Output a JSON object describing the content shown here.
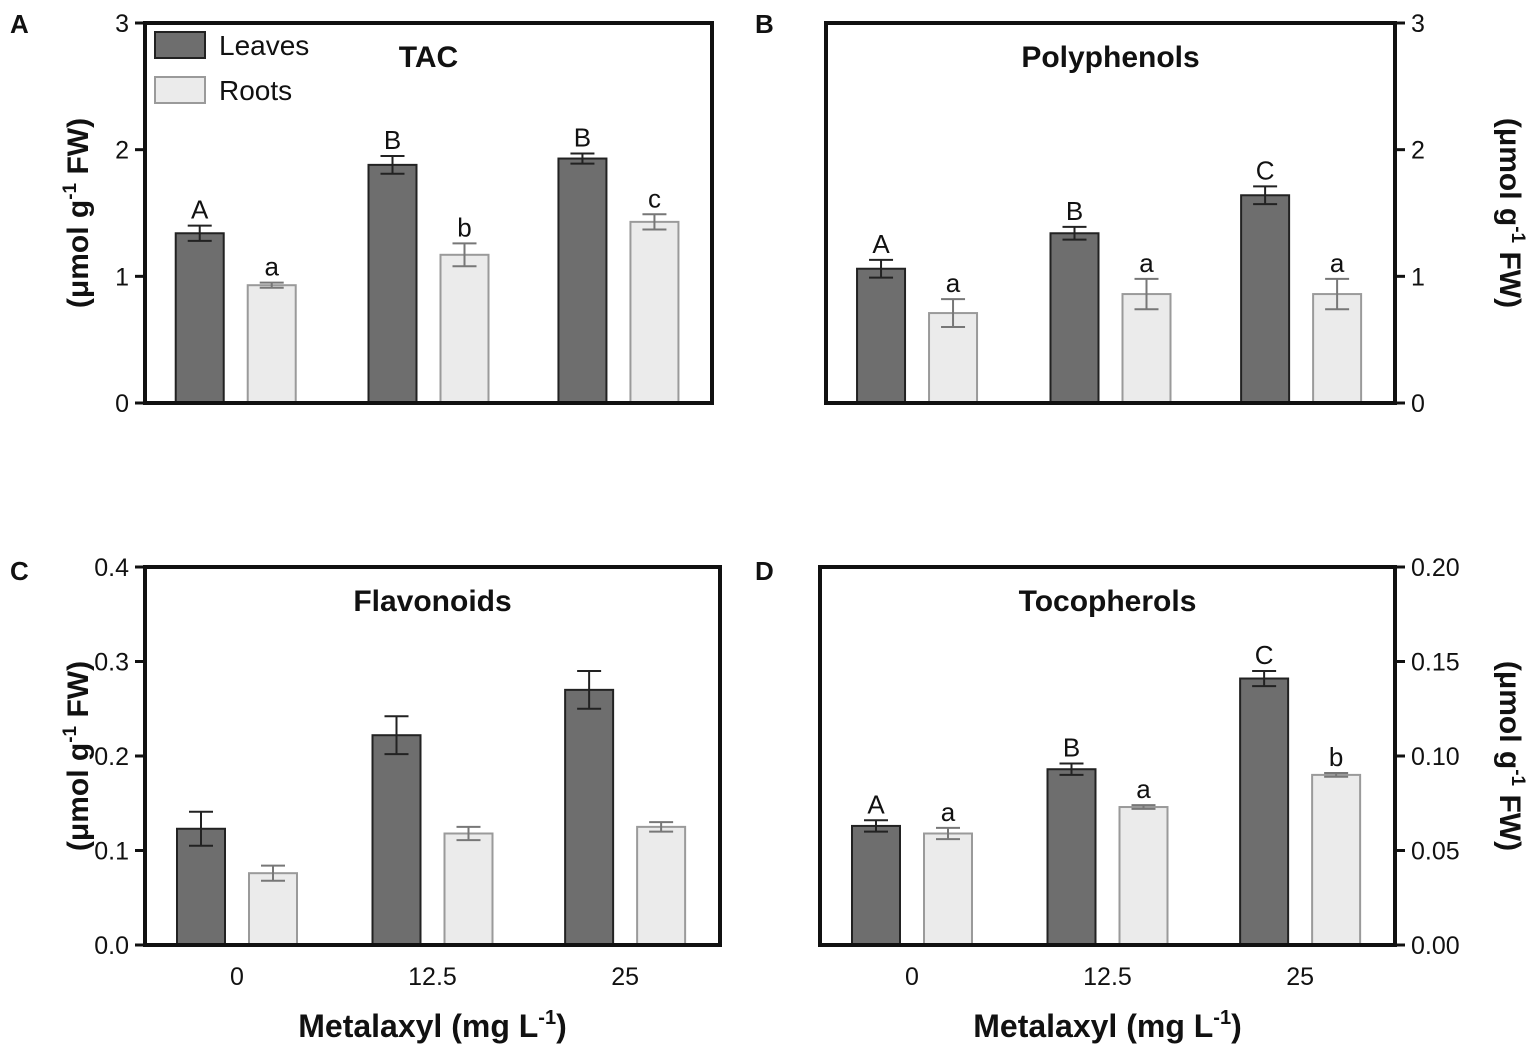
{
  "legend": {
    "series1": "Leaves",
    "series2": "Roots"
  },
  "colors": {
    "leaves": "#6e6e6e",
    "roots": "#ebebeb",
    "roots_stroke": "#9a9a9a",
    "axis": "#111111"
  },
  "xlabel": "Metalaxyl (mg L",
  "xlabel_sup": "-1",
  "xlabel_close": ")",
  "ylabel_parts": {
    "pre": "(μmol g",
    "sup": "-1",
    "post": " FW)"
  },
  "chart_data": [
    {
      "panel": "A",
      "type": "bar",
      "title": "TAC",
      "categories": [
        "0",
        "12.5",
        "25"
      ],
      "ylim": [
        0,
        3
      ],
      "yticks": [
        0,
        1,
        2,
        3
      ],
      "tick_labels": [
        "0",
        "1",
        "2",
        "3"
      ],
      "axis_side": "left",
      "show_x_labels": false,
      "show_legend": true,
      "series": [
        {
          "name": "Leaves",
          "values": [
            1.34,
            1.88,
            1.93
          ],
          "errors": [
            0.06,
            0.07,
            0.04
          ],
          "letters": [
            "A",
            "B",
            "B"
          ]
        },
        {
          "name": "Roots",
          "values": [
            0.93,
            1.17,
            1.43
          ],
          "errors": [
            0.02,
            0.09,
            0.06
          ],
          "letters": [
            "a",
            "b",
            "c"
          ]
        }
      ]
    },
    {
      "panel": "B",
      "type": "bar",
      "title": "Polyphenols",
      "categories": [
        "0",
        "12.5",
        "25"
      ],
      "ylim": [
        0,
        3
      ],
      "yticks": [
        0,
        1,
        2,
        3
      ],
      "tick_labels": [
        "0",
        "1",
        "2",
        "3"
      ],
      "axis_side": "right",
      "show_x_labels": false,
      "show_legend": false,
      "series": [
        {
          "name": "Leaves",
          "values": [
            1.06,
            1.34,
            1.64
          ],
          "errors": [
            0.07,
            0.05,
            0.07
          ],
          "letters": [
            "A",
            "B",
            "C"
          ]
        },
        {
          "name": "Roots",
          "values": [
            0.71,
            0.86,
            0.86
          ],
          "errors": [
            0.11,
            0.12,
            0.12
          ],
          "letters": [
            "a",
            "a",
            "a"
          ]
        }
      ]
    },
    {
      "panel": "C",
      "type": "bar",
      "title": "Flavonoids",
      "categories": [
        "0",
        "12.5",
        "25"
      ],
      "ylim": [
        0,
        0.4
      ],
      "yticks": [
        0,
        0.1,
        0.2,
        0.3,
        0.4
      ],
      "tick_labels": [
        "0.0",
        "0.1",
        "0.2",
        "0.3",
        "0.4"
      ],
      "axis_side": "left",
      "show_x_labels": true,
      "show_legend": false,
      "series": [
        {
          "name": "Leaves",
          "values": [
            0.123,
            0.222,
            0.27
          ],
          "errors": [
            0.018,
            0.02,
            0.02
          ],
          "letters": [
            "",
            "",
            ""
          ]
        },
        {
          "name": "Roots",
          "values": [
            0.076,
            0.118,
            0.125
          ],
          "errors": [
            0.008,
            0.007,
            0.005
          ],
          "letters": [
            "",
            "",
            ""
          ]
        }
      ]
    },
    {
      "panel": "D",
      "type": "bar",
      "title": "Tocopherols",
      "categories": [
        "0",
        "12.5",
        "25"
      ],
      "ylim": [
        0,
        0.2
      ],
      "yticks": [
        0,
        0.05,
        0.1,
        0.15,
        0.2
      ],
      "tick_labels": [
        "0.00",
        "0.05",
        "0.10",
        "0.15",
        "0.20"
      ],
      "axis_side": "right",
      "show_x_labels": true,
      "show_legend": false,
      "series": [
        {
          "name": "Leaves",
          "values": [
            0.063,
            0.093,
            0.141
          ],
          "errors": [
            0.003,
            0.003,
            0.004
          ],
          "letters": [
            "A",
            "B",
            "C"
          ]
        },
        {
          "name": "Roots",
          "values": [
            0.059,
            0.073,
            0.09
          ],
          "errors": [
            0.003,
            0.001,
            0.001
          ],
          "letters": [
            "a",
            "a",
            "b"
          ]
        }
      ]
    }
  ]
}
